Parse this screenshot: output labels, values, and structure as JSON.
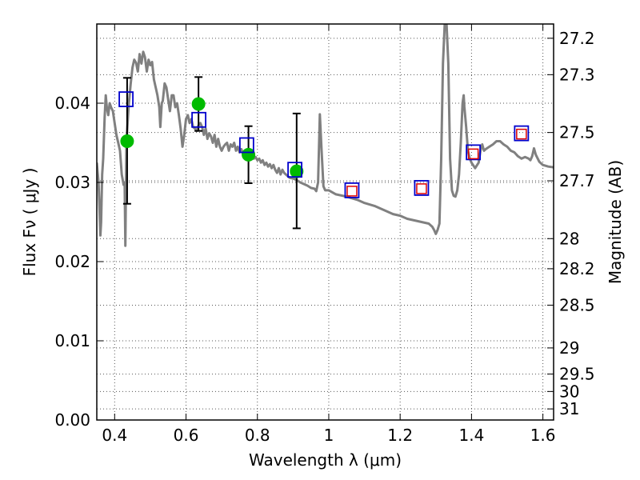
{
  "chart_data": {
    "type": "scatter",
    "title": "",
    "xlabel": "Wavelength  λ (μm)",
    "ylabel": "Flux  Fν  ( μJy )",
    "y2label": "Magnitude (AB)",
    "xlim": [
      0.35,
      1.63
    ],
    "ylim": [
      0.0,
      0.05
    ],
    "grid": true,
    "x_ticks": [
      0.4,
      0.6,
      0.8,
      1.0,
      1.2,
      1.4,
      1.6
    ],
    "x_tick_labels": [
      "0.4",
      "0.6",
      "0.8",
      "1",
      "1.2",
      "1.4",
      "1.6"
    ],
    "y_ticks": [
      0.0,
      0.01,
      0.02,
      0.03,
      0.04
    ],
    "y_tick_labels": [
      "0.00",
      "0.01",
      "0.02",
      "0.03",
      "0.04"
    ],
    "y2_ticks": [
      {
        "label": "27.2",
        "flux": 0.0482
      },
      {
        "label": "27.3",
        "flux": 0.0436
      },
      {
        "label": "27.5",
        "flux": 0.0363
      },
      {
        "label": "27.7",
        "flux": 0.0302
      },
      {
        "label": "28",
        "flux": 0.0229
      },
      {
        "label": "28.2",
        "flux": 0.0191
      },
      {
        "label": "28.5",
        "flux": 0.0145
      },
      {
        "label": "29",
        "flux": 0.0091
      },
      {
        "label": "29.5",
        "flux": 0.0058
      },
      {
        "label": "30",
        "flux": 0.0036
      },
      {
        "label": "31",
        "flux": 0.0014
      }
    ],
    "colors": {
      "model_line": "#808080",
      "observed": "#00bb00",
      "model_points": "#0000cc",
      "fit_points": "#dd0000",
      "error_bar": "#000000",
      "grid": "#555555"
    },
    "series": [
      {
        "type": "line",
        "points": [
          [
            0.35,
            0.0325
          ],
          [
            0.355,
            0.03
          ],
          [
            0.36,
            0.0233
          ],
          [
            0.362,
            0.025
          ],
          [
            0.365,
            0.031
          ],
          [
            0.368,
            0.033
          ],
          [
            0.372,
            0.0382
          ],
          [
            0.375,
            0.041
          ],
          [
            0.378,
            0.0395
          ],
          [
            0.382,
            0.0385
          ],
          [
            0.386,
            0.04
          ],
          [
            0.39,
            0.0395
          ],
          [
            0.395,
            0.039
          ],
          [
            0.4,
            0.0375
          ],
          [
            0.405,
            0.036
          ],
          [
            0.41,
            0.035
          ],
          [
            0.415,
            0.034
          ],
          [
            0.42,
            0.031
          ],
          [
            0.425,
            0.0297
          ],
          [
            0.428,
            0.03
          ],
          [
            0.43,
            0.022
          ],
          [
            0.433,
            0.035
          ],
          [
            0.437,
            0.038
          ],
          [
            0.44,
            0.04
          ],
          [
            0.445,
            0.0425
          ],
          [
            0.45,
            0.0445
          ],
          [
            0.455,
            0.0455
          ],
          [
            0.46,
            0.0451
          ],
          [
            0.465,
            0.044
          ],
          [
            0.47,
            0.0462
          ],
          [
            0.475,
            0.045
          ],
          [
            0.48,
            0.0465
          ],
          [
            0.485,
            0.0458
          ],
          [
            0.49,
            0.044
          ],
          [
            0.495,
            0.0455
          ],
          [
            0.5,
            0.0448
          ],
          [
            0.505,
            0.0452
          ],
          [
            0.51,
            0.043
          ],
          [
            0.515,
            0.042
          ],
          [
            0.52,
            0.041
          ],
          [
            0.525,
            0.0395
          ],
          [
            0.528,
            0.037
          ],
          [
            0.532,
            0.04
          ],
          [
            0.535,
            0.0403
          ],
          [
            0.54,
            0.0425
          ],
          [
            0.545,
            0.042
          ],
          [
            0.55,
            0.0405
          ],
          [
            0.555,
            0.039
          ],
          [
            0.56,
            0.041
          ],
          [
            0.565,
            0.041
          ],
          [
            0.57,
            0.0395
          ],
          [
            0.575,
            0.04
          ],
          [
            0.58,
            0.0385
          ],
          [
            0.585,
            0.0368
          ],
          [
            0.59,
            0.0345
          ],
          [
            0.595,
            0.036
          ],
          [
            0.6,
            0.038
          ],
          [
            0.605,
            0.0385
          ],
          [
            0.61,
            0.0375
          ],
          [
            0.615,
            0.038
          ],
          [
            0.62,
            0.037
          ],
          [
            0.625,
            0.0368
          ],
          [
            0.63,
            0.0365
          ],
          [
            0.635,
            0.0372
          ],
          [
            0.64,
            0.0375
          ],
          [
            0.645,
            0.037
          ],
          [
            0.65,
            0.036
          ],
          [
            0.655,
            0.0368
          ],
          [
            0.66,
            0.0355
          ],
          [
            0.665,
            0.0362
          ],
          [
            0.67,
            0.0358
          ],
          [
            0.675,
            0.035
          ],
          [
            0.68,
            0.036
          ],
          [
            0.685,
            0.0345
          ],
          [
            0.69,
            0.0355
          ],
          [
            0.695,
            0.0345
          ],
          [
            0.7,
            0.034
          ],
          [
            0.705,
            0.0345
          ],
          [
            0.71,
            0.0348
          ],
          [
            0.715,
            0.035
          ],
          [
            0.72,
            0.034
          ],
          [
            0.725,
            0.0348
          ],
          [
            0.73,
            0.0345
          ],
          [
            0.735,
            0.035
          ],
          [
            0.74,
            0.034
          ],
          [
            0.745,
            0.0345
          ],
          [
            0.75,
            0.0338
          ],
          [
            0.755,
            0.0342
          ],
          [
            0.76,
            0.0335
          ],
          [
            0.765,
            0.0338
          ],
          [
            0.77,
            0.034
          ],
          [
            0.775,
            0.0335
          ],
          [
            0.78,
            0.0332
          ],
          [
            0.785,
            0.0336
          ],
          [
            0.79,
            0.033
          ],
          [
            0.795,
            0.0332
          ],
          [
            0.8,
            0.0328
          ],
          [
            0.805,
            0.033
          ],
          [
            0.81,
            0.0325
          ],
          [
            0.815,
            0.0328
          ],
          [
            0.82,
            0.0322
          ],
          [
            0.825,
            0.0325
          ],
          [
            0.83,
            0.032
          ],
          [
            0.835,
            0.0323
          ],
          [
            0.84,
            0.0318
          ],
          [
            0.845,
            0.0322
          ],
          [
            0.85,
            0.0316
          ],
          [
            0.855,
            0.0312
          ],
          [
            0.86,
            0.0318
          ],
          [
            0.865,
            0.031
          ],
          [
            0.87,
            0.0316
          ],
          [
            0.875,
            0.0312
          ],
          [
            0.88,
            0.031
          ],
          [
            0.89,
            0.0306
          ],
          [
            0.9,
            0.0305
          ],
          [
            0.91,
            0.0303
          ],
          [
            0.92,
            0.03
          ],
          [
            0.93,
            0.0298
          ],
          [
            0.94,
            0.0296
          ],
          [
            0.95,
            0.0293
          ],
          [
            0.96,
            0.0292
          ],
          [
            0.965,
            0.0289
          ],
          [
            0.97,
            0.03
          ],
          [
            0.975,
            0.0386
          ],
          [
            0.98,
            0.034
          ],
          [
            0.985,
            0.0295
          ],
          [
            0.99,
            0.029
          ],
          [
            1.0,
            0.029
          ],
          [
            1.02,
            0.0285
          ],
          [
            1.05,
            0.0282
          ],
          [
            1.08,
            0.0278
          ],
          [
            1.1,
            0.0274
          ],
          [
            1.13,
            0.027
          ],
          [
            1.16,
            0.0264
          ],
          [
            1.18,
            0.026
          ],
          [
            1.2,
            0.0258
          ],
          [
            1.22,
            0.0254
          ],
          [
            1.24,
            0.0252
          ],
          [
            1.26,
            0.025
          ],
          [
            1.28,
            0.0248
          ],
          [
            1.29,
            0.0244
          ],
          [
            1.295,
            0.024
          ],
          [
            1.3,
            0.0235
          ],
          [
            1.305,
            0.024
          ],
          [
            1.31,
            0.0248
          ],
          [
            1.315,
            0.033
          ],
          [
            1.32,
            0.045
          ],
          [
            1.325,
            0.05
          ],
          [
            1.33,
            0.05
          ],
          [
            1.335,
            0.045
          ],
          [
            1.34,
            0.033
          ],
          [
            1.345,
            0.029
          ],
          [
            1.35,
            0.0283
          ],
          [
            1.355,
            0.0282
          ],
          [
            1.36,
            0.029
          ],
          [
            1.365,
            0.031
          ],
          [
            1.37,
            0.035
          ],
          [
            1.375,
            0.04
          ],
          [
            1.378,
            0.041
          ],
          [
            1.38,
            0.0395
          ],
          [
            1.385,
            0.037
          ],
          [
            1.39,
            0.034
          ],
          [
            1.395,
            0.033
          ],
          [
            1.4,
            0.0325
          ],
          [
            1.41,
            0.0318
          ],
          [
            1.42,
            0.0325
          ],
          [
            1.425,
            0.034
          ],
          [
            1.43,
            0.0348
          ],
          [
            1.435,
            0.034
          ],
          [
            1.44,
            0.0342
          ],
          [
            1.45,
            0.0345
          ],
          [
            1.46,
            0.0348
          ],
          [
            1.47,
            0.0352
          ],
          [
            1.48,
            0.0352
          ],
          [
            1.49,
            0.0348
          ],
          [
            1.5,
            0.0345
          ],
          [
            1.51,
            0.034
          ],
          [
            1.52,
            0.0338
          ],
          [
            1.53,
            0.0333
          ],
          [
            1.54,
            0.033
          ],
          [
            1.55,
            0.0332
          ],
          [
            1.56,
            0.033
          ],
          [
            1.565,
            0.0328
          ],
          [
            1.57,
            0.0333
          ],
          [
            1.575,
            0.0343
          ],
          [
            1.58,
            0.0335
          ],
          [
            1.59,
            0.0326
          ],
          [
            1.6,
            0.0322
          ],
          [
            1.615,
            0.032
          ],
          [
            1.63,
            0.0319
          ]
        ]
      },
      {
        "type": "errorbar",
        "points": [
          {
            "x": 0.435,
            "y": 0.0352,
            "lo": 0.0273,
            "hi": 0.0432
          },
          {
            "x": 0.635,
            "y": 0.0399,
            "lo": 0.0365,
            "hi": 0.0433
          },
          {
            "x": 0.775,
            "y": 0.0335,
            "lo": 0.0299,
            "hi": 0.0371
          },
          {
            "x": 0.91,
            "y": 0.0314,
            "lo": 0.0242,
            "hi": 0.0387
          }
        ]
      },
      {
        "type": "scatter",
        "points": [
          [
            0.432,
            0.0405
          ],
          [
            0.636,
            0.0379
          ],
          [
            0.77,
            0.0347
          ],
          [
            0.905,
            0.0316
          ],
          [
            1.065,
            0.029
          ],
          [
            1.26,
            0.0293
          ],
          [
            1.405,
            0.0338
          ],
          [
            1.54,
            0.0362
          ]
        ]
      },
      {
        "type": "scatter",
        "points": [
          [
            1.065,
            0.0289
          ],
          [
            1.26,
            0.0292
          ],
          [
            1.405,
            0.0336
          ],
          [
            1.54,
            0.0361
          ]
        ]
      }
    ]
  }
}
